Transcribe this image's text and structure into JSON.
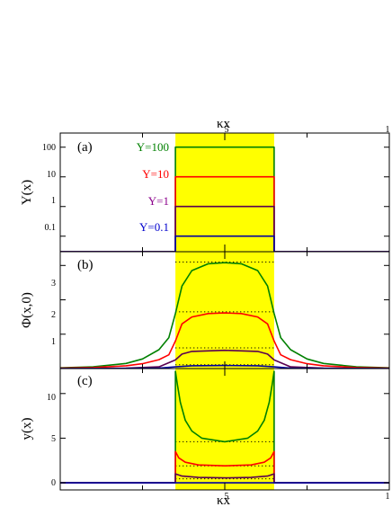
{
  "chart_data": [
    {
      "type": "line",
      "panel_label": "(a)",
      "ylabel": "Y(x)",
      "top_axis_label": "κx",
      "top_tick_labels": [
        "5",
        "1"
      ],
      "yscale": "log",
      "ylim": [
        0.03,
        300
      ],
      "yticks": [
        0.1,
        1,
        10,
        100
      ],
      "ytick_labels": [
        "0.1",
        "1",
        "10",
        "100"
      ],
      "xlim": [
        0,
        10
      ],
      "highlight_band": {
        "x": [
          3.5,
          6.5
        ],
        "color": "#ffff00"
      },
      "series": [
        {
          "name": "Y=100",
          "color": "#008000",
          "label_color": "#008000",
          "x": [
            0,
            3.5,
            3.5,
            6.5,
            6.5,
            10
          ],
          "y": [
            0.03,
            0.03,
            100,
            100,
            0.03,
            0.03
          ]
        },
        {
          "name": "Y=10",
          "color": "#ff0000",
          "label_color": "#ff0000",
          "x": [
            0,
            3.5,
            3.5,
            6.5,
            6.5,
            10
          ],
          "y": [
            0.03,
            0.03,
            10,
            10,
            0.03,
            0.03
          ]
        },
        {
          "name": "Y=1",
          "color": "#5a0050",
          "label_color": "#8b008b",
          "x": [
            0,
            3.5,
            3.5,
            6.5,
            6.5,
            10
          ],
          "y": [
            0.03,
            0.03,
            1,
            1,
            0.03,
            0.03
          ]
        },
        {
          "name": "Y=0.1",
          "color": "#0000a0",
          "label_color": "#0000cd",
          "x": [
            0,
            3.5,
            3.5,
            6.5,
            6.5,
            10
          ],
          "y": [
            0.03,
            0.03,
            0.1,
            0.1,
            0.03,
            0.03
          ]
        }
      ]
    },
    {
      "type": "line",
      "panel_label": "(b)",
      "ylabel": "Φ(x,0)",
      "ylim": [
        0,
        3.4
      ],
      "yticks": [
        1,
        2,
        3
      ],
      "ytick_labels": [
        "1",
        "2",
        "3"
      ],
      "xlim": [
        0,
        10
      ],
      "highlight_band": {
        "x": [
          3.5,
          6.5
        ],
        "color": "#ffff00"
      },
      "reference_levels": [
        3.1,
        1.65,
        0.6,
        0.11
      ],
      "series": [
        {
          "name": "Y=100",
          "color": "#008000",
          "x": [
            0,
            1,
            2,
            2.5,
            3,
            3.3,
            3.5,
            3.7,
            4,
            4.5,
            5,
            5.5,
            6,
            6.3,
            6.5,
            6.7,
            7,
            7.5,
            8,
            9,
            10
          ],
          "y": [
            0.02,
            0.05,
            0.15,
            0.28,
            0.55,
            0.9,
            1.6,
            2.4,
            2.85,
            3.05,
            3.08,
            3.05,
            2.85,
            2.4,
            1.6,
            0.9,
            0.55,
            0.28,
            0.15,
            0.05,
            0.02
          ]
        },
        {
          "name": "Y=10",
          "color": "#ff0000",
          "x": [
            0,
            1,
            2,
            2.5,
            3,
            3.3,
            3.5,
            3.7,
            4,
            4.5,
            5,
            5.5,
            6,
            6.3,
            6.5,
            6.7,
            7,
            7.5,
            8,
            9,
            10
          ],
          "y": [
            0.01,
            0.03,
            0.08,
            0.14,
            0.26,
            0.4,
            0.8,
            1.3,
            1.5,
            1.6,
            1.62,
            1.6,
            1.5,
            1.3,
            0.8,
            0.4,
            0.26,
            0.14,
            0.08,
            0.03,
            0.01
          ]
        },
        {
          "name": "Y=1",
          "color": "#5a0050",
          "x": [
            0,
            2,
            3,
            3.5,
            3.7,
            4,
            5,
            6,
            6.3,
            6.5,
            7,
            8,
            10
          ],
          "y": [
            0,
            0.01,
            0.05,
            0.25,
            0.42,
            0.5,
            0.53,
            0.5,
            0.42,
            0.25,
            0.05,
            0.01,
            0
          ]
        },
        {
          "name": "Y=0.1",
          "color": "#0000a0",
          "x": [
            0,
            3,
            3.5,
            4,
            5,
            6,
            6.5,
            7,
            10
          ],
          "y": [
            0,
            0.01,
            0.05,
            0.08,
            0.09,
            0.08,
            0.05,
            0.01,
            0
          ]
        }
      ]
    },
    {
      "type": "line",
      "panel_label": "(c)",
      "ylabel": "y(x)",
      "bottom_axis_label": "κx",
      "bottom_tick_labels": [
        "5",
        "1"
      ],
      "ylim": [
        -0.8,
        12.8
      ],
      "yticks": [
        0,
        5,
        10
      ],
      "ytick_labels": [
        "0",
        "5",
        "10"
      ],
      "xlim": [
        0,
        10
      ],
      "highlight_band": {
        "x": [
          3.5,
          6.5
        ],
        "color": "#ffff00"
      },
      "reference_levels": [
        4.6,
        1.9,
        0.45
      ],
      "series": [
        {
          "name": "Y=100",
          "color": "#008000",
          "x": [
            0,
            3.5,
            3.5,
            3.56,
            3.65,
            3.8,
            4.0,
            4.3,
            5,
            5.7,
            6.0,
            6.2,
            6.35,
            6.44,
            6.5,
            6.5,
            10
          ],
          "y": [
            0,
            0,
            12.5,
            11.0,
            9.0,
            7.0,
            5.8,
            5.0,
            4.6,
            5.0,
            5.8,
            7.0,
            9.0,
            11.0,
            12.5,
            0,
            0
          ]
        },
        {
          "name": "Y=10",
          "color": "#ff0000",
          "x": [
            0,
            3.5,
            3.5,
            3.6,
            3.8,
            4.2,
            5,
            5.8,
            6.2,
            6.4,
            6.5,
            6.5,
            10
          ],
          "y": [
            0,
            0,
            3.5,
            2.8,
            2.3,
            2.0,
            1.9,
            2.0,
            2.3,
            2.8,
            3.5,
            0,
            0
          ]
        },
        {
          "name": "Y=1",
          "color": "#5a0050",
          "x": [
            0,
            3.5,
            3.5,
            3.7,
            4.2,
            5,
            5.8,
            6.3,
            6.5,
            6.5,
            10
          ],
          "y": [
            0,
            0,
            1.0,
            0.75,
            0.6,
            0.55,
            0.6,
            0.75,
            1.0,
            0,
            0
          ]
        },
        {
          "name": "Y=0.1",
          "color": "#0000a0",
          "x": [
            0,
            10
          ],
          "y": [
            0,
            0
          ]
        }
      ]
    }
  ]
}
